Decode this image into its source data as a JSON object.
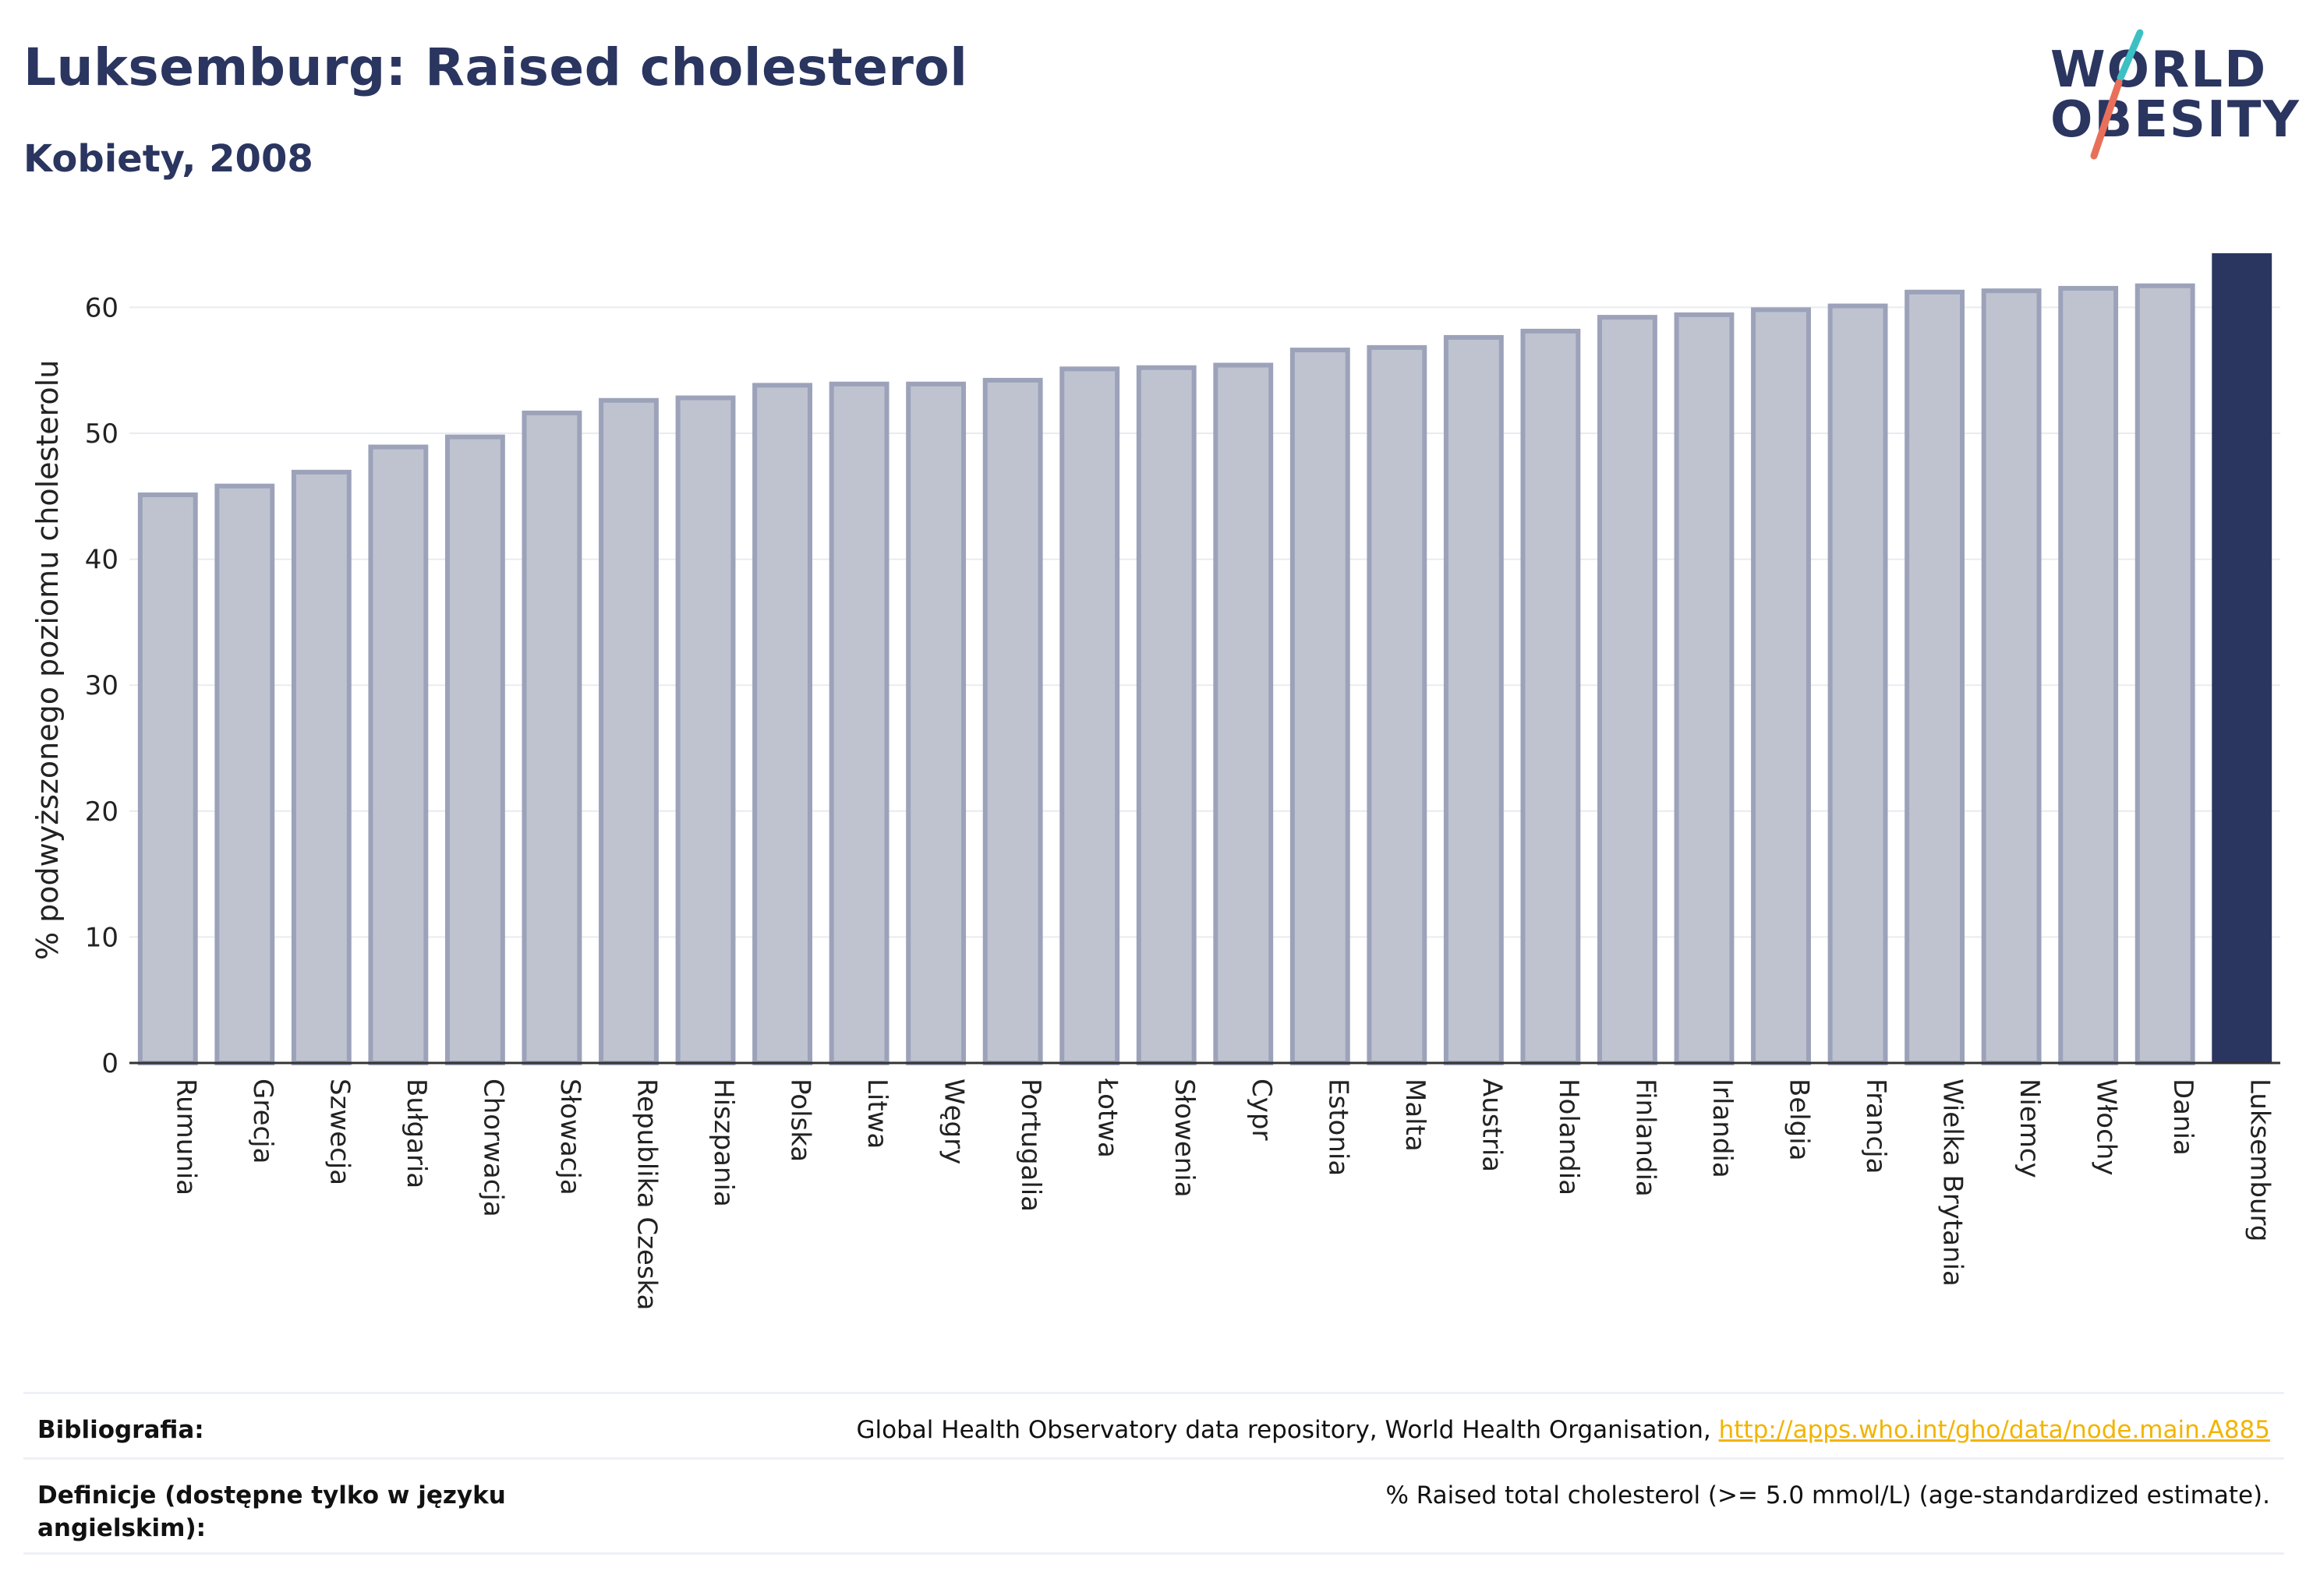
{
  "header": {
    "title": "Luksemburg: Raised cholesterol",
    "subtitle": "Kobiety, 2008"
  },
  "logo": {
    "line1": "WORLD",
    "line2": "OBESITY",
    "slash_colors": [
      "#3cc0c4",
      "#e8705a"
    ]
  },
  "colors": {
    "bar_fill": "#bfc3d0",
    "bar_stroke": "#9ca2b9",
    "highlight": "#2a3560",
    "grid": "#e9ebf1",
    "axis_text": "#222222"
  },
  "chart_data": {
    "type": "bar",
    "title": "",
    "xlabel": "",
    "ylabel": "% podwyższonego poziomu cholesterolu",
    "ylim": [
      0,
      65
    ],
    "yticks": [
      0,
      10,
      20,
      30,
      40,
      50,
      60
    ],
    "grid": true,
    "highlight_category": "Luksemburg",
    "categories": [
      "Rumunia",
      "Grecja",
      "Szwecja",
      "Bułgaria",
      "Chorwacja",
      "Słowacja",
      "Republika Czeska",
      "Hiszpania",
      "Polska",
      "Litwa",
      "Węgry",
      "Portugalia",
      "Łotwa",
      "Słowenia",
      "Cypr",
      "Estonia",
      "Malta",
      "Austria",
      "Holandia",
      "Finlandia",
      "Irlandia",
      "Belgia",
      "Francja",
      "Wielka Brytania",
      "Niemcy",
      "Włochy",
      "Dania",
      "Luksemburg"
    ],
    "values": [
      45.3,
      46.0,
      47.1,
      49.1,
      49.9,
      51.8,
      52.8,
      53.0,
      54.0,
      54.1,
      54.1,
      54.4,
      55.3,
      55.4,
      55.6,
      56.8,
      57.0,
      57.8,
      58.3,
      59.4,
      59.6,
      60.0,
      60.3,
      61.4,
      61.5,
      61.7,
      61.9,
      64.3
    ]
  },
  "footer": {
    "bibliography_label": "Bibliografia:",
    "bibliography_text": "Global Health Observatory data repository, World Health Organisation, ",
    "bibliography_link": "http://apps.who.int/gho/data/node.main.A885",
    "definition_label": "Definicje (dostępne tylko w języku angielskim):",
    "definition_text": "% Raised total cholesterol (>= 5.0 mmol/L) (age-standardized estimate)."
  }
}
